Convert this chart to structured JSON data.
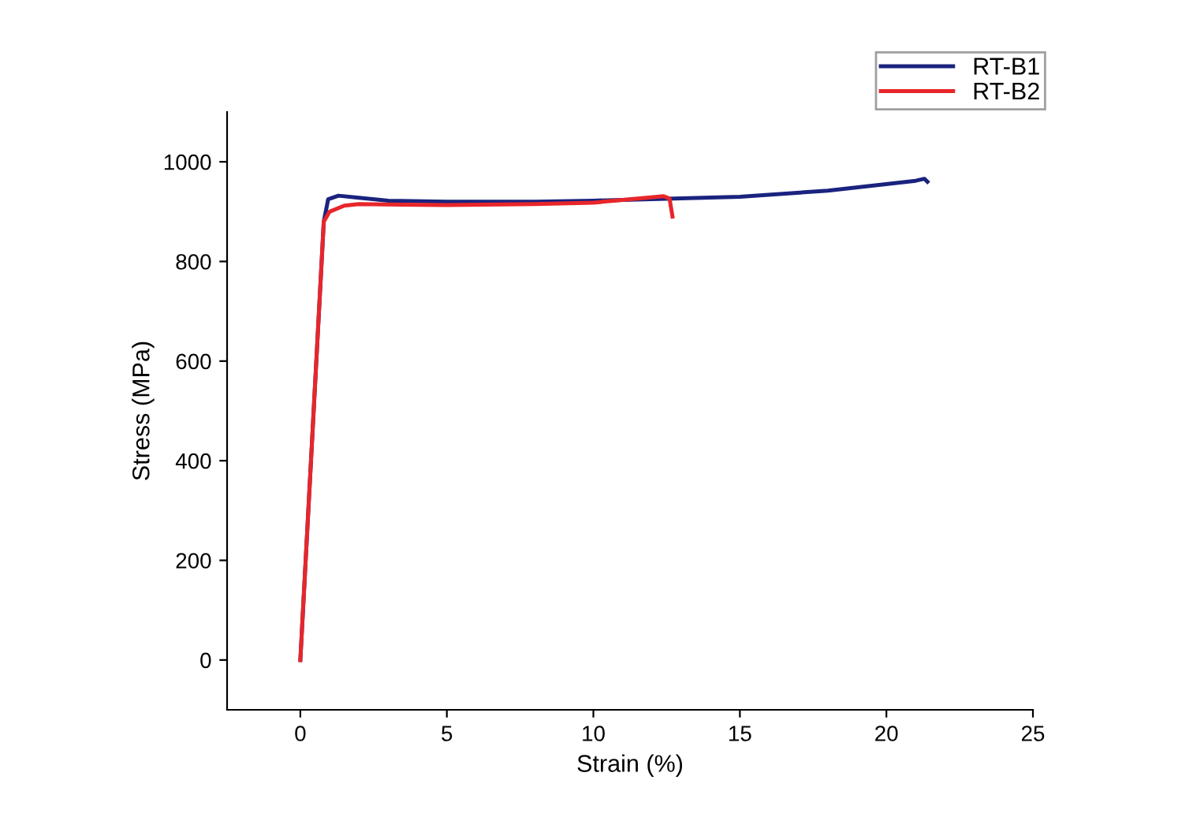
{
  "chart_data": {
    "type": "line",
    "xlabel": "Strain (%)",
    "ylabel": "Stress (MPa)",
    "xlim": [
      -2.5,
      25
    ],
    "xticks": [
      0,
      5,
      10,
      15,
      20,
      25
    ],
    "ylim": [
      -100,
      1100
    ],
    "yticks": [
      0,
      200,
      400,
      600,
      800,
      1000
    ],
    "grid": false,
    "legend": "top right",
    "marker": "none",
    "line_style": "solid",
    "series": [
      {
        "name": "RT-B1",
        "color": "#1a237e",
        "x": [
          0,
          0.8,
          0.95,
          1.3,
          2,
          3,
          5,
          8,
          10,
          12.5,
          15,
          18,
          21,
          21.3,
          21.4
        ],
        "values": [
          0,
          880,
          925,
          932,
          928,
          922,
          920,
          920,
          922,
          926,
          930,
          942,
          962,
          966,
          960
        ]
      },
      {
        "name": "RT-B2",
        "color": "#e8262a",
        "x": [
          0,
          0.8,
          1,
          1.5,
          2,
          5,
          8,
          10,
          12.4,
          12.6,
          12.7
        ],
        "values": [
          0,
          880,
          900,
          912,
          915,
          913,
          915,
          918,
          931,
          926,
          890
        ]
      }
    ]
  }
}
